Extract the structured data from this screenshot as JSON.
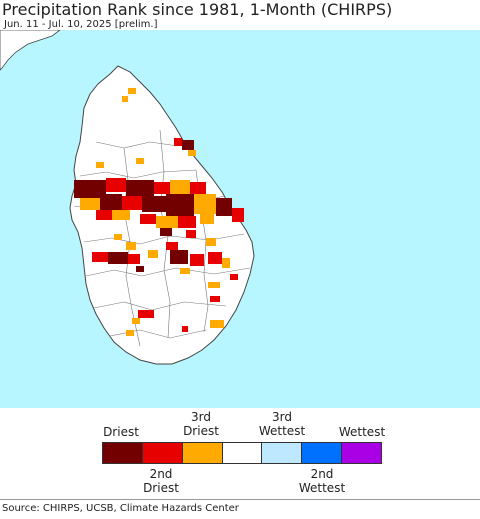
{
  "title": "Precipitation Rank since 1981, 1-Month (CHIRPS)",
  "subtitle": "Jun. 11 - Jul. 10, 2025 [prelim.]",
  "legend": {
    "top_labels": [
      "Driest",
      "3rd\nDriest",
      "3rd\nWettest",
      "Wettest"
    ],
    "bottom_labels": [
      "2nd\nDriest",
      "2nd\nWettest"
    ],
    "colors": [
      "#720000",
      "#e60000",
      "#ffaa00",
      "#ffffff",
      "#bee8ff",
      "#0070ff",
      "#a900e6"
    ]
  },
  "map_colors": {
    "ocean": "#b8f6ff",
    "land": "#ffffff",
    "border": "#444444"
  },
  "source": "Source: CHIRPS, UCSB, Climate Hazards Center"
}
